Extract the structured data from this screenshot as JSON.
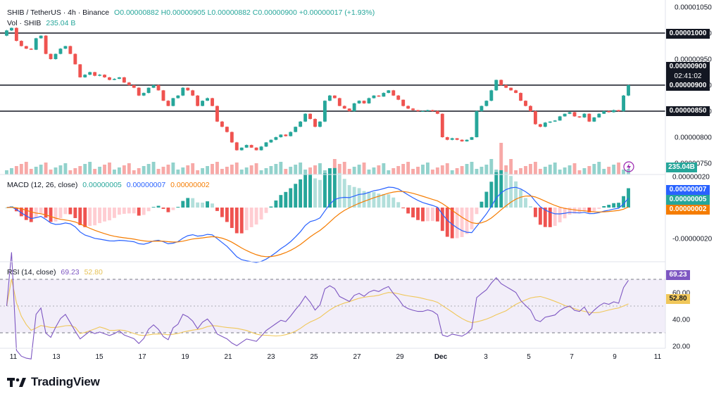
{
  "header": {
    "symbol": "SHIB / TetherUS · 4h · Binance",
    "ohlc": "O0.00000882 H0.00000905 L0.00000882 C0.00000900 +0.00000017 (+1.93%)",
    "vol_label": "Vol · SHIB",
    "vol_value": "235.04 B"
  },
  "price_axis": {
    "ticks": [
      "0.00001050",
      "0.00001000",
      "0.00000950",
      "0.00000900",
      "0.00000850",
      "0.00000800",
      "0.00000750"
    ],
    "current_price": "0.00000900",
    "countdown": "02:41:02",
    "level_labels": [
      "0.00001000",
      "0.00000900",
      "0.00000850"
    ],
    "volume_badge": "235.04B"
  },
  "macd": {
    "label": "MACD (12, 26, close)",
    "v1": "0.00000005",
    "v2": "0.00000007",
    "v3": "0.00000002",
    "axis_ticks": [
      "0.00000020",
      "-0.00000020"
    ],
    "badges": [
      "0.00000007",
      "0.00000005",
      "0.00000002"
    ]
  },
  "rsi": {
    "label": "RSI (14, close)",
    "value": "69.23",
    "ma": "52.80",
    "axis_ticks": [
      "60.00",
      "40.00",
      "20.00"
    ],
    "badges": [
      "69.23",
      "52.80"
    ]
  },
  "time_axis": {
    "ticks": [
      "11",
      "13",
      "15",
      "17",
      "19",
      "21",
      "23",
      "25",
      "27",
      "29",
      "Dec",
      "3",
      "5",
      "7",
      "9",
      "11"
    ]
  },
  "brand": {
    "name": "TradingView"
  },
  "colors": {
    "up": "#26a69a",
    "down": "#ef5350",
    "macd": "#2962ff",
    "signal": "#f57c00",
    "rsi": "#7e57c2",
    "rsi_ma": "#e6c255",
    "level": "#131722"
  },
  "chart_data": [
    {
      "type": "candlestick",
      "title": "SHIB / TetherUS · 4h · Binance",
      "ylim": [
        7.5e-06,
        1.05e-05
      ],
      "horizontal_levels": [
        1e-05,
        9e-06,
        8.5e-06
      ],
      "close": [
        1.005e-05,
        1.01e-05,
        9.85e-06,
        9.75e-06,
        9.7e-06,
        9.68e-06,
        9.9e-06,
        9.95e-06,
        9.6e-06,
        9.5e-06,
        9.6e-06,
        9.7e-06,
        9.75e-06,
        9.6e-06,
        9.4e-06,
        9.15e-06,
        9.2e-06,
        9.25e-06,
        9.18e-06,
        9.2e-06,
        9.15e-06,
        9.1e-06,
        9.12e-06,
        9.15e-06,
        9.05e-06,
        9e-06,
        8.95e-06,
        8.8e-06,
        8.85e-06,
        8.95e-06,
        9e-06,
        8.9e-06,
        8.7e-06,
        8.6e-06,
        8.75e-06,
        8.8e-06,
        8.95e-06,
        8.9e-06,
        8.8e-06,
        8.6e-06,
        8.7e-06,
        8.75e-06,
        8.6e-06,
        8.3e-06,
        8.2e-06,
        8.1e-06,
        7.9e-06,
        7.75e-06,
        7.8e-06,
        7.85e-06,
        7.8e-06,
        7.75e-06,
        7.82e-06,
        7.9e-06,
        7.95e-06,
        8e-06,
        8.05e-06,
        8.02e-06,
        8.1e-06,
        8.2e-06,
        8.3e-06,
        8.45e-06,
        8.35e-06,
        8.2e-06,
        8.3e-06,
        8.7e-06,
        8.8e-06,
        8.75e-06,
        8.6e-06,
        8.55e-06,
        8.5e-06,
        8.65e-06,
        8.7e-06,
        8.65e-06,
        8.75e-06,
        8.8e-06,
        8.78e-06,
        8.85e-06,
        8.9e-06,
        8.8e-06,
        8.72e-06,
        8.6e-06,
        8.55e-06,
        8.52e-06,
        8.5e-06,
        8.5e-06,
        8.52e-06,
        8.5e-06,
        8.45e-06,
        8e-06,
        7.95e-06,
        7.98e-06,
        7.95e-06,
        7.92e-06,
        7.95e-06,
        8e-06,
        8.5e-06,
        8.6e-06,
        8.7e-06,
        8.9e-06,
        9.1e-06,
        9e-06,
        8.95e-06,
        8.9e-06,
        8.85e-06,
        8.7e-06,
        8.6e-06,
        8.5e-06,
        8.25e-06,
        8.2e-06,
        8.28e-06,
        8.3e-06,
        8.32e-06,
        8.4e-06,
        8.45e-06,
        8.48e-06,
        8.4e-06,
        8.38e-06,
        8.45e-06,
        8.3e-06,
        8.38e-06,
        8.45e-06,
        8.5e-06,
        8.48e-06,
        8.52e-06,
        8.5e-06,
        8.8e-06,
        9e-06
      ]
    },
    {
      "type": "bar",
      "title": "Vol · SHIB",
      "last_value": "235.04 B"
    },
    {
      "type": "line",
      "title": "MACD (12, 26, close)",
      "series": [
        {
          "name": "MACD",
          "last": 7e-08
        },
        {
          "name": "Signal",
          "last": 5e-08
        },
        {
          "name": "Histogram",
          "last": 2e-08
        }
      ]
    },
    {
      "type": "line",
      "title": "RSI (14, close)",
      "ylim": [
        20,
        80
      ],
      "bands": [
        70,
        30
      ],
      "series": [
        {
          "name": "RSI",
          "last": 69.23
        },
        {
          "name": "RSI MA",
          "last": 52.8
        }
      ]
    }
  ]
}
